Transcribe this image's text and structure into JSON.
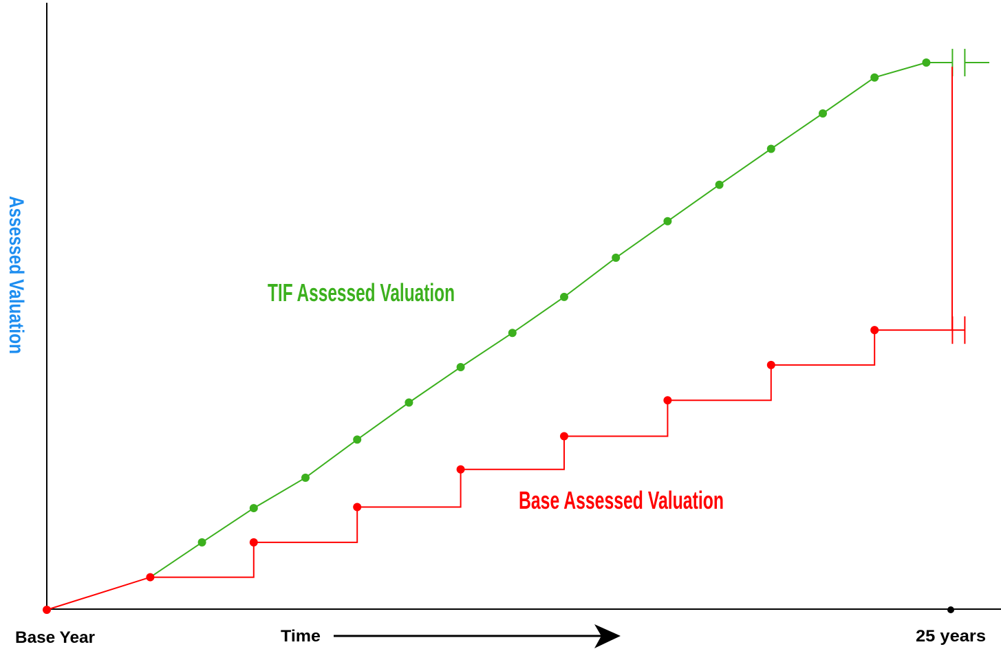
{
  "labels": {
    "y_axis": "Assessed Valuation",
    "tif": "TIF Assessed Valuation",
    "base": "Base Assessed Valuation",
    "base_year": "Base Year",
    "time": "Time",
    "end": "25 years"
  },
  "colors": {
    "tif": "#3cb01e",
    "base": "#ff0000",
    "y_axis_label": "#1e8ef0",
    "axis": "#000000"
  },
  "chart_data": {
    "type": "line",
    "series": [
      {
        "name": "TIF Assessed Valuation",
        "shape": "linear",
        "points": [
          [
            0,
            0
          ],
          [
            1,
            5.9
          ],
          [
            1.5,
            12.2
          ],
          [
            2,
            18.4
          ],
          [
            2.5,
            23.9
          ],
          [
            3,
            30.8
          ],
          [
            3.5,
            37.5
          ],
          [
            4,
            43.9
          ],
          [
            4.5,
            50.1
          ],
          [
            5,
            56.6
          ],
          [
            5.5,
            63.7
          ],
          [
            6,
            70.3
          ],
          [
            6.5,
            76.9
          ],
          [
            7,
            83.4
          ],
          [
            7.5,
            89.8
          ],
          [
            8,
            96.3
          ],
          [
            8.5,
            99.0
          ]
        ],
        "end_break": true
      },
      {
        "name": "Base Assessed Valuation",
        "shape": "step",
        "points": [
          [
            0,
            0
          ],
          [
            1,
            5.9
          ],
          [
            2,
            12.2
          ],
          [
            3,
            18.6
          ],
          [
            4,
            25.4
          ],
          [
            5,
            31.4
          ],
          [
            6,
            37.9
          ],
          [
            7,
            44.3
          ],
          [
            8,
            50.6
          ]
        ],
        "end_break": true
      }
    ],
    "x_end": 8.75,
    "y_max": 100
  }
}
